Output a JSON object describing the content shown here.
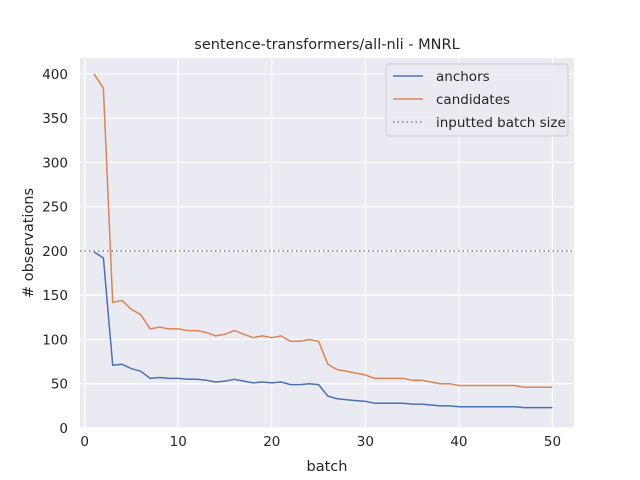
{
  "chart_data": {
    "type": "line",
    "title": "sentence-transformers/all-nli - MNRL",
    "xlabel": "batch",
    "ylabel": "# observations",
    "xlim": [
      -0.5,
      52.3
    ],
    "ylim": [
      0,
      418
    ],
    "xticks": [
      0,
      10,
      20,
      30,
      40,
      50
    ],
    "yticks": [
      0,
      50,
      100,
      150,
      200,
      250,
      300,
      350,
      400
    ],
    "grid": true,
    "legend_position": "top-right",
    "x": [
      1,
      2,
      3,
      4,
      5,
      6,
      7,
      8,
      9,
      10,
      11,
      12,
      13,
      14,
      15,
      16,
      17,
      18,
      19,
      20,
      21,
      22,
      23,
      24,
      25,
      26,
      27,
      28,
      29,
      30,
      31,
      32,
      33,
      34,
      35,
      36,
      37,
      38,
      39,
      40,
      41,
      42,
      43,
      44,
      45,
      46,
      47,
      48,
      49,
      50
    ],
    "series": [
      {
        "name": "anchors",
        "color": "#4c72b0",
        "style": "solid",
        "values": [
          199,
          192,
          71,
          72,
          67,
          64,
          56,
          57,
          56,
          56,
          55,
          55,
          54,
          52,
          53,
          55,
          53,
          51,
          52,
          51,
          52,
          49,
          49,
          50,
          49,
          36,
          33,
          32,
          31,
          30,
          28,
          28,
          28,
          28,
          27,
          27,
          26,
          25,
          25,
          24,
          24,
          24,
          24,
          24,
          24,
          24,
          23,
          23,
          23,
          23
        ]
      },
      {
        "name": "candidates",
        "color": "#dd8452",
        "style": "solid",
        "values": [
          400,
          384,
          142,
          144,
          134,
          128,
          112,
          114,
          112,
          112,
          110,
          110,
          108,
          104,
          106,
          110,
          106,
          102,
          104,
          102,
          104,
          98,
          98,
          100,
          98,
          72,
          66,
          64,
          62,
          60,
          56,
          56,
          56,
          56,
          54,
          54,
          52,
          50,
          50,
          48,
          48,
          48,
          48,
          48,
          48,
          48,
          46,
          46,
          46,
          46
        ]
      },
      {
        "name": "inputted batch size",
        "color": "#808080",
        "style": "dotted",
        "constant": 200
      }
    ]
  }
}
